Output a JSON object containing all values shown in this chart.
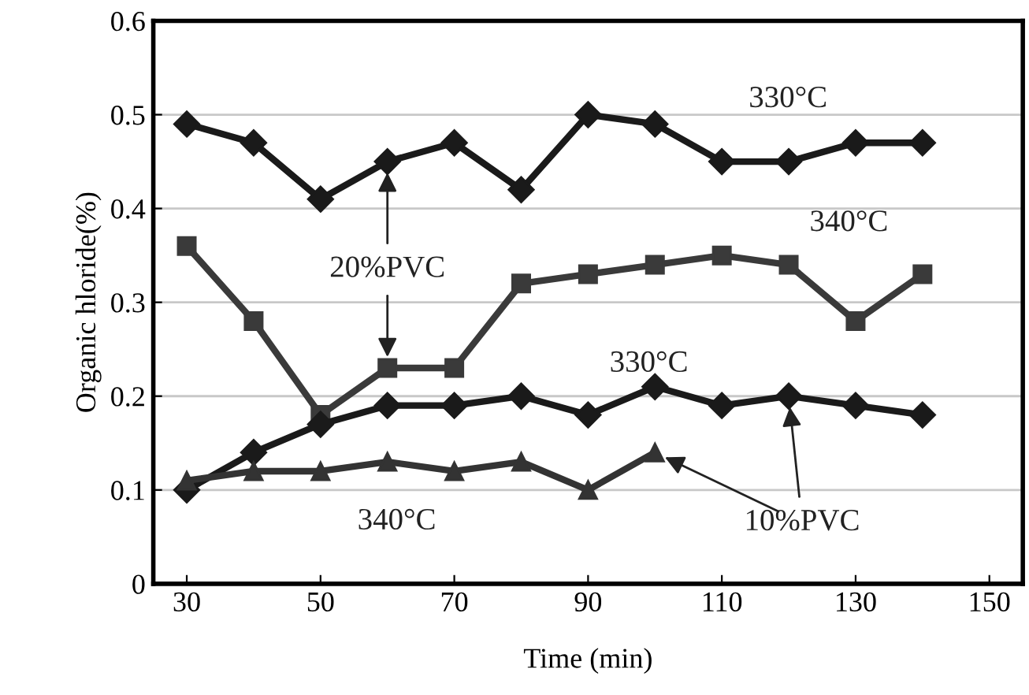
{
  "chart_data": {
    "type": "line",
    "xlabel": "Time (min)",
    "ylabel": "Organic hloride(%)",
    "x": [
      30,
      40,
      50,
      60,
      70,
      80,
      90,
      100,
      110,
      120,
      130,
      140
    ],
    "xlim": [
      25,
      155
    ],
    "xticks": [
      30,
      50,
      70,
      90,
      110,
      130,
      150
    ],
    "ylim": [
      0,
      0.6
    ],
    "yticks": [
      0,
      0.1,
      0.2,
      0.3,
      0.4,
      0.5,
      0.6
    ],
    "grid": "y",
    "legend": false,
    "series": [
      {
        "name": "330°C",
        "color": "#1a1a1a",
        "marker": "diamond",
        "values": [
          0.49,
          0.47,
          0.41,
          0.45,
          0.47,
          0.42,
          0.5,
          0.49,
          0.45,
          0.45,
          0.47,
          0.47
        ]
      },
      {
        "name": "340°C",
        "color": "#3a3a3a",
        "marker": "square",
        "values": [
          0.36,
          0.28,
          0.18,
          0.23,
          0.23,
          0.32,
          0.33,
          0.34,
          0.35,
          0.34,
          0.28,
          0.33
        ]
      },
      {
        "name": "330°C",
        "color": "#1a1a1a",
        "marker": "diamond",
        "values": [
          0.1,
          0.14,
          0.17,
          0.19,
          0.19,
          0.2,
          0.18,
          0.21,
          0.19,
          0.2,
          0.19,
          0.18
        ]
      },
      {
        "name": "340°C",
        "color": "#333333",
        "marker": "triangle",
        "x": [
          30,
          40,
          50,
          60,
          70,
          80,
          90,
          100
        ],
        "values": [
          0.11,
          0.12,
          0.12,
          0.13,
          0.12,
          0.13,
          0.1,
          0.14
        ]
      }
    ],
    "annotations": [
      {
        "text": "20%PVC",
        "x": 60,
        "y": 0.45
      },
      {
        "text": "10%PVC",
        "x": 100,
        "y": 0.14
      }
    ]
  }
}
